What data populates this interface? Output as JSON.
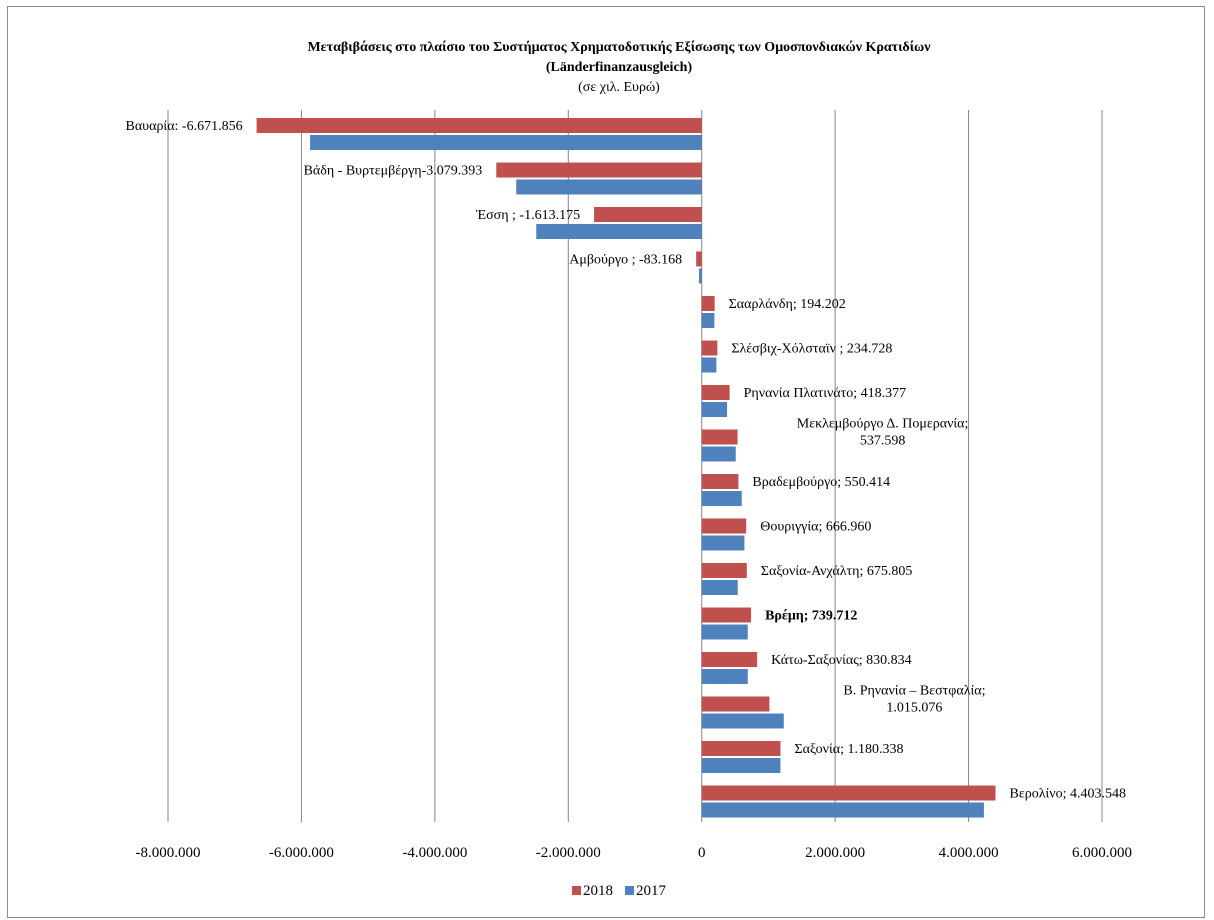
{
  "chart_data": {
    "type": "bar",
    "orientation": "horizontal",
    "title": "Μεταβιβάσεις στο πλαίσιο του Συστήματος Χρηματοδοτικής Εξίσωσης των Ομοσπονδιακών Κρατιδίων",
    "title_line2": "(Länderfinanzausgleich)",
    "subtitle": "(σε χιλ. Ευρώ)",
    "xlim": [
      -8000000,
      6000000
    ],
    "x_ticks": [
      -8000000,
      -6000000,
      -4000000,
      -2000000,
      0,
      2000000,
      4000000,
      6000000
    ],
    "x_tick_labels": [
      "-8.000.000",
      "-6.000.000",
      "-4.000.000",
      "-2.000.000",
      "0",
      "2.000.000",
      "4.000.000",
      "6.000.000"
    ],
    "grid": true,
    "legend_position": "bottom",
    "series": [
      {
        "name": "2018",
        "color": "#c0504d",
        "values": [
          -6671856,
          -3079393,
          -1613175,
          -83168,
          194202,
          234728,
          418377,
          537598,
          550414,
          666960,
          675805,
          739712,
          830834,
          1015076,
          1180338,
          4403548
        ]
      },
      {
        "name": "2017",
        "color": "#4f81bd",
        "values": [
          -5870000,
          -2780000,
          -2480000,
          -40000,
          190000,
          220000,
          380000,
          510000,
          600000,
          640000,
          540000,
          690000,
          690000,
          1230000,
          1180000,
          4230000
        ]
      }
    ],
    "labels": [
      {
        "lines": [
          "Βαυαρία: -6.671.856"
        ],
        "bold": false
      },
      {
        "lines": [
          "Βάδη - Βυρτεμβέργη-3.079.393"
        ],
        "bold": false
      },
      {
        "lines": [
          "Έσση ; -1.613.175"
        ],
        "bold": false
      },
      {
        "lines": [
          "Αμβούργο ; -83.168"
        ],
        "bold": false
      },
      {
        "lines": [
          "Σααρλάνδη; 194.202"
        ],
        "bold": false
      },
      {
        "lines": [
          "Σλέσβιχ-Χόλσταϊν ; 234.728"
        ],
        "bold": false
      },
      {
        "lines": [
          "Ρηνανία Πλατινάτο; 418.377"
        ],
        "bold": false
      },
      {
        "lines": [
          "Μεκλεμβούργο Δ. Πομερανία;",
          "537.598"
        ],
        "bold": false
      },
      {
        "lines": [
          "Βραδεμβούργο; 550.414"
        ],
        "bold": false
      },
      {
        "lines": [
          "Θουριγγία; 666.960"
        ],
        "bold": false
      },
      {
        "lines": [
          "Σαξονία-Ανχάλτη; 675.805"
        ],
        "bold": false
      },
      {
        "lines": [
          "Βρέμη; 739.712"
        ],
        "bold": true
      },
      {
        "lines": [
          "Κάτω-Σαξονίας; 830.834"
        ],
        "bold": false
      },
      {
        "lines": [
          "Β. Ρηνανία – Βεστφαλία;",
          "1.015.076"
        ],
        "bold": false
      },
      {
        "lines": [
          "Σαξονία; 1.180.338"
        ],
        "bold": false
      },
      {
        "lines": [
          "Βερολίνο; 4.403.548"
        ],
        "bold": false
      }
    ]
  }
}
